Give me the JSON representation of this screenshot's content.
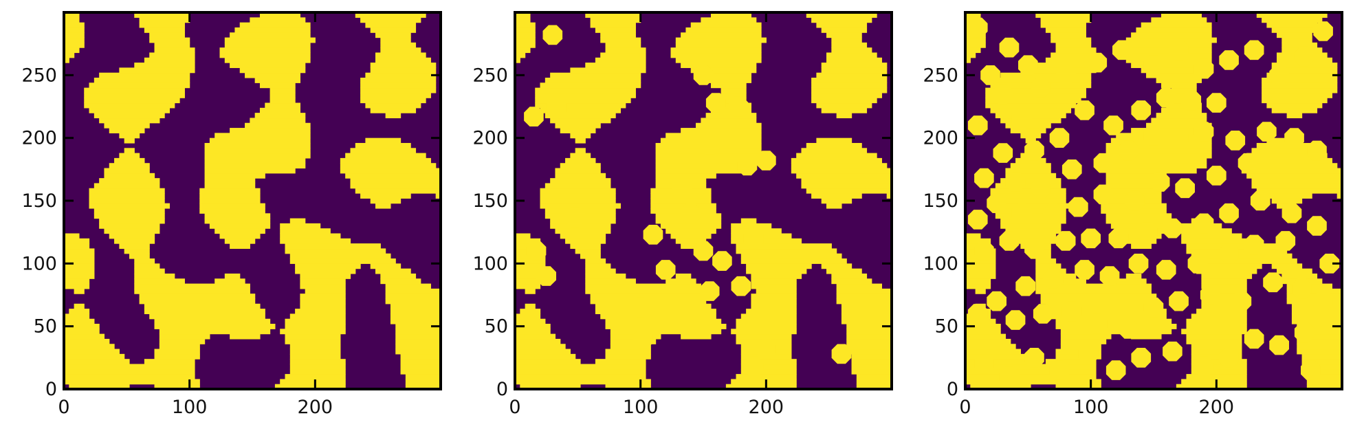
{
  "chart_data": [
    {
      "type": "heatmap",
      "title": "",
      "xlabel": "",
      "ylabel": "",
      "xlim": [
        0,
        300
      ],
      "ylim": [
        0,
        300
      ],
      "x_ticks": [
        0,
        100,
        200
      ],
      "y_ticks": [
        0,
        50,
        100,
        150,
        200,
        250
      ],
      "colormap": {
        "0": "#440154",
        "1": "#fde725"
      },
      "description_of_values": "binary phase field",
      "seed": 11,
      "blob_threshold": 0.0,
      "inclusions": []
    },
    {
      "type": "heatmap",
      "title": "",
      "xlabel": "",
      "ylabel": "",
      "xlim": [
        0,
        300
      ],
      "ylim": [
        0,
        300
      ],
      "x_ticks": [
        0,
        100,
        200
      ],
      "y_ticks": [
        0,
        50,
        100,
        150,
        200,
        250
      ],
      "colormap": {
        "0": "#440154",
        "1": "#fde725"
      },
      "seed": 11,
      "blob_threshold": 0.0,
      "inclusions": [
        [
          30,
          282
        ],
        [
          15,
          217
        ],
        [
          33,
          224
        ],
        [
          48,
          137
        ],
        [
          17,
          110
        ],
        [
          25,
          90
        ],
        [
          110,
          123
        ],
        [
          120,
          95
        ],
        [
          133,
          160
        ],
        [
          140,
          140
        ],
        [
          155,
          78
        ],
        [
          150,
          110
        ],
        [
          155,
          195
        ],
        [
          150,
          250
        ],
        [
          160,
          228
        ],
        [
          178,
          225
        ],
        [
          175,
          200
        ],
        [
          185,
          178
        ],
        [
          200,
          182
        ],
        [
          190,
          120
        ],
        [
          165,
          102
        ],
        [
          180,
          82
        ],
        [
          100,
          65
        ],
        [
          102,
          40
        ],
        [
          200,
          32
        ],
        [
          190,
          18
        ],
        [
          260,
          28
        ]
      ]
    },
    {
      "type": "heatmap",
      "title": "",
      "xlabel": "",
      "ylabel": "",
      "xlim": [
        0,
        300
      ],
      "ylim": [
        0,
        300
      ],
      "x_ticks": [
        0,
        100,
        200
      ],
      "y_ticks": [
        0,
        50,
        100,
        150,
        200,
        250
      ],
      "colormap": {
        "0": "#440154",
        "1": "#fde725"
      },
      "seed": 11,
      "blob_threshold": 0.0,
      "inclusions": [
        [
          10,
          288
        ],
        [
          35,
          272
        ],
        [
          20,
          250
        ],
        [
          50,
          258
        ],
        [
          30,
          235
        ],
        [
          10,
          210
        ],
        [
          45,
          215
        ],
        [
          60,
          240
        ],
        [
          80,
          250
        ],
        [
          105,
          260
        ],
        [
          125,
          270
        ],
        [
          150,
          258
        ],
        [
          170,
          270
        ],
        [
          190,
          255
        ],
        [
          210,
          262
        ],
        [
          230,
          270
        ],
        [
          250,
          250
        ],
        [
          270,
          265
        ],
        [
          285,
          285
        ],
        [
          160,
          232
        ],
        [
          180,
          230
        ],
        [
          200,
          228
        ],
        [
          140,
          222
        ],
        [
          118,
          210
        ],
        [
          95,
          222
        ],
        [
          75,
          200
        ],
        [
          55,
          190
        ],
        [
          30,
          188
        ],
        [
          15,
          168
        ],
        [
          40,
          165
        ],
        [
          60,
          160
        ],
        [
          85,
          175
        ],
        [
          110,
          180
        ],
        [
          130,
          190
        ],
        [
          150,
          202
        ],
        [
          170,
          200
        ],
        [
          190,
          205
        ],
        [
          215,
          198
        ],
        [
          240,
          205
        ],
        [
          262,
          200
        ],
        [
          280,
          190
        ],
        [
          225,
          180
        ],
        [
          200,
          170
        ],
        [
          175,
          160
        ],
        [
          155,
          165
        ],
        [
          135,
          150
        ],
        [
          110,
          155
        ],
        [
          90,
          145
        ],
        [
          70,
          140
        ],
        [
          45,
          140
        ],
        [
          25,
          148
        ],
        [
          10,
          135
        ],
        [
          35,
          118
        ],
        [
          15,
          110
        ],
        [
          55,
          112
        ],
        [
          80,
          118
        ],
        [
          100,
          120
        ],
        [
          122,
          120
        ],
        [
          145,
          125
        ],
        [
          165,
          128
        ],
        [
          190,
          132
        ],
        [
          210,
          140
        ],
        [
          235,
          150
        ],
        [
          260,
          140
        ],
        [
          280,
          130
        ],
        [
          255,
          118
        ],
        [
          230,
          115
        ],
        [
          210,
          108
        ],
        [
          185,
          100
        ],
        [
          160,
          95
        ],
        [
          138,
          100
        ],
        [
          115,
          90
        ],
        [
          95,
          95
        ],
        [
          70,
          88
        ],
        [
          48,
          82
        ],
        [
          25,
          70
        ],
        [
          10,
          60
        ],
        [
          40,
          55
        ],
        [
          62,
          60
        ],
        [
          85,
          62
        ],
        [
          105,
          52
        ],
        [
          130,
          48
        ],
        [
          150,
          65
        ],
        [
          170,
          70
        ],
        [
          195,
          75
        ],
        [
          220,
          70
        ],
        [
          245,
          85
        ],
        [
          268,
          80
        ],
        [
          285,
          70
        ],
        [
          270,
          45
        ],
        [
          250,
          35
        ],
        [
          230,
          40
        ],
        [
          210,
          25
        ],
        [
          190,
          18
        ],
        [
          165,
          30
        ],
        [
          140,
          25
        ],
        [
          120,
          15
        ],
        [
          98,
          28
        ],
        [
          75,
          15
        ],
        [
          55,
          25
        ],
        [
          35,
          10
        ],
        [
          15,
          20
        ],
        [
          275,
          15
        ],
        [
          290,
          100
        ]
      ]
    }
  ]
}
